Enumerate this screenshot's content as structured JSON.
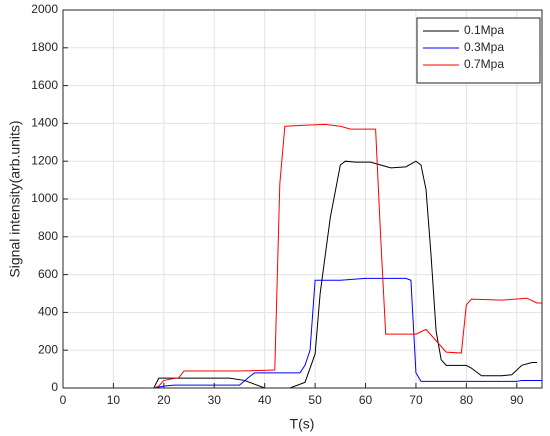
{
  "chart_data": {
    "type": "line",
    "xlabel": "T(s)",
    "ylabel": "Signal intensity(arb.units)",
    "xlim": [
      0,
      95
    ],
    "xticks": [
      0,
      10,
      20,
      30,
      40,
      50,
      60,
      70,
      80,
      90
    ],
    "ylim": [
      0,
      2000
    ],
    "yticks": [
      0,
      200,
      400,
      600,
      800,
      1000,
      1200,
      1400,
      1600,
      1800,
      2000
    ],
    "grid": true,
    "legend": "northeast",
    "series": [
      {
        "name": "0.1Mpa",
        "color": "#000000",
        "x": [
          0,
          18,
          19,
          25,
          33,
          36,
          40,
          45,
          48,
          50,
          51,
          53,
          55,
          56,
          58,
          61,
          63,
          65,
          68,
          70,
          71,
          72,
          73,
          74,
          75,
          76,
          80,
          81,
          83,
          87,
          89,
          91,
          93,
          94
        ],
        "values": [
          0,
          0,
          52,
          52,
          52,
          40,
          0,
          0,
          30,
          180,
          500,
          900,
          1180,
          1200,
          1195,
          1195,
          1180,
          1165,
          1170,
          1200,
          1180,
          1050,
          700,
          300,
          150,
          120,
          120,
          105,
          65,
          65,
          70,
          120,
          135,
          135
        ]
      },
      {
        "name": "0.3Mpa",
        "color": "#0000ff",
        "x": [
          0,
          18,
          20,
          22,
          30,
          35,
          37,
          38,
          47,
          48,
          49,
          50,
          55,
          60,
          68,
          69,
          70,
          71,
          80,
          90,
          91,
          95
        ],
        "values": [
          0,
          0,
          10,
          15,
          15,
          15,
          60,
          80,
          80,
          120,
          200,
          570,
          570,
          580,
          580,
          570,
          80,
          35,
          35,
          35,
          40,
          40
        ]
      },
      {
        "name": "0.7Mpa",
        "color": "#ff0000",
        "x": [
          0,
          18,
          19,
          20,
          23,
          24,
          35,
          42,
          43,
          44,
          48,
          52,
          55,
          57,
          62,
          63,
          64,
          70,
          72,
          74,
          76,
          79,
          80,
          81,
          87,
          92,
          94,
          95
        ],
        "values": [
          0,
          0,
          10,
          40,
          55,
          90,
          90,
          95,
          1080,
          1385,
          1390,
          1395,
          1385,
          1370,
          1370,
          800,
          285,
          285,
          310,
          250,
          190,
          185,
          440,
          470,
          465,
          475,
          450,
          450
        ]
      }
    ]
  }
}
